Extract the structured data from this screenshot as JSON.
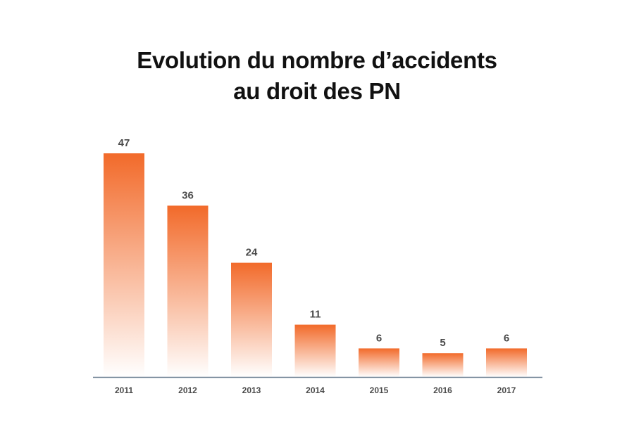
{
  "chart_data": {
    "type": "bar",
    "title_lines": [
      "Evolution du nombre d’accidents",
      "au droit des PN"
    ],
    "categories": [
      "2011",
      "2012",
      "2013",
      "2014",
      "2015",
      "2016",
      "2017"
    ],
    "values": [
      47,
      36,
      24,
      11,
      6,
      5,
      6
    ],
    "xlabel": "",
    "ylabel": "",
    "ylim": [
      0,
      47
    ],
    "grid": false,
    "legend": "none",
    "data_labels": true,
    "colors": {
      "bar_top": "#f26a2a",
      "bar_bottom": "#ffffff",
      "axis": "#6b7f91",
      "labels": "#4a4a4a"
    }
  }
}
